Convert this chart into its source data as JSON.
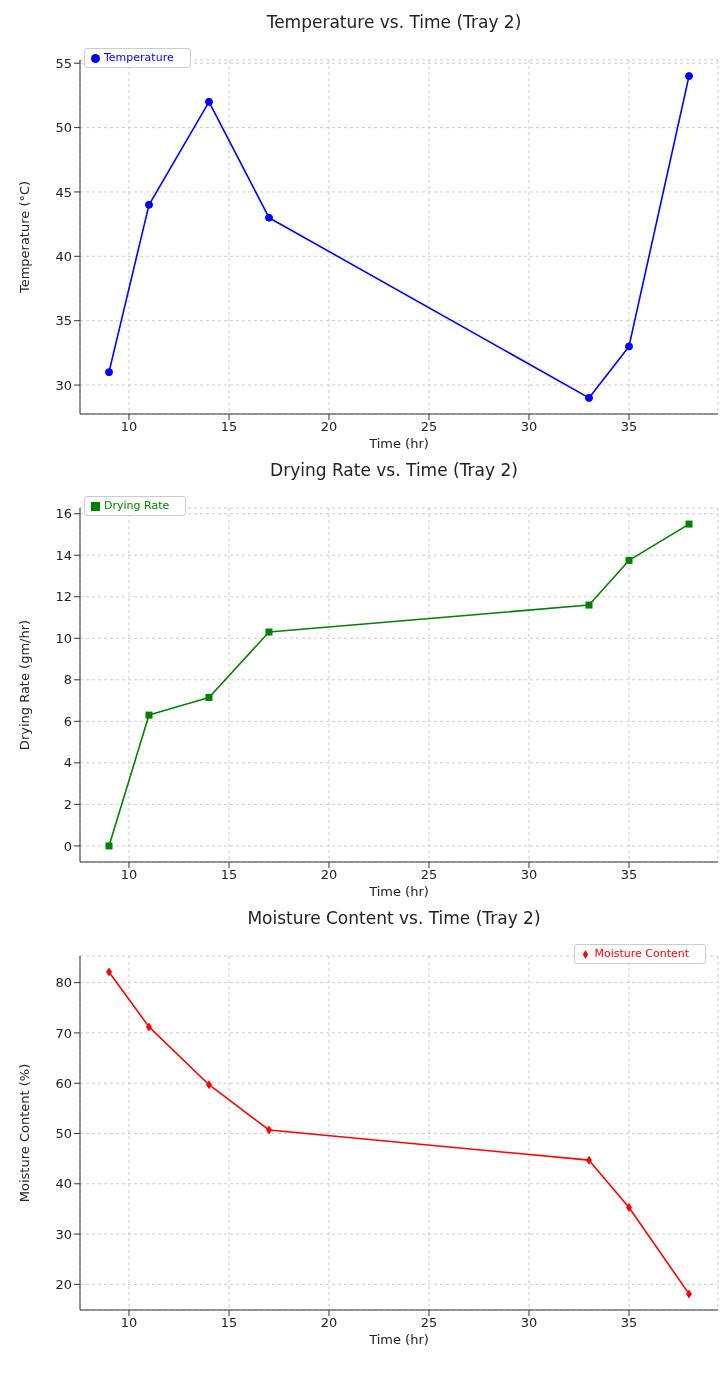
{
  "chart_data": [
    {
      "type": "line",
      "title": "Temperature vs. Time (Tray 2)",
      "xlabel": "Time (hr)",
      "ylabel": "Temperature (°C)",
      "x": [
        9,
        11,
        14,
        17,
        33,
        35,
        38
      ],
      "series": [
        {
          "name": "Temperature",
          "color": "#0000ff",
          "values": [
            31,
            44,
            52,
            43,
            29,
            33,
            54
          ]
        }
      ],
      "xlim": [
        7.55,
        39.45
      ],
      "xticks": [
        10,
        15,
        20,
        25,
        30,
        35
      ],
      "ylim": [
        27.75,
        55.25
      ],
      "yticks": [
        30,
        35,
        40,
        45,
        50,
        55
      ],
      "grid": true,
      "legend": "top left",
      "marker": "circle",
      "line_style": "solid"
    },
    {
      "type": "line",
      "title": "Drying Rate vs. Time (Tray 2)",
      "xlabel": "Time (hr)",
      "ylabel": "Drying Rate (gm/hr)",
      "x": [
        9,
        11,
        14,
        17,
        33,
        35,
        38
      ],
      "series": [
        {
          "name": "Drying Rate",
          "color": "#008000",
          "values": [
            0,
            6.3,
            7.15,
            10.3,
            11.6,
            13.75,
            15.5
          ]
        }
      ],
      "xlim": [
        7.55,
        39.45
      ],
      "xticks": [
        10,
        15,
        20,
        25,
        30,
        35
      ],
      "ylim": [
        -0.775,
        16.275
      ],
      "yticks": [
        0,
        2,
        4,
        6,
        8,
        10,
        12,
        14,
        16
      ],
      "grid": true,
      "legend": "top left",
      "marker": "square",
      "line_style": "solid"
    },
    {
      "type": "line",
      "title": "Moisture Content vs. Time (Tray 2)",
      "xlabel": "Time (hr)",
      "ylabel": "Moisture Content (%)",
      "x": [
        9,
        11,
        14,
        17,
        33,
        35,
        38
      ],
      "series": [
        {
          "name": "Moisture Content",
          "color": "#ff0000",
          "values": [
            82.1,
            71.2,
            59.7,
            50.7,
            44.7,
            35.3,
            18.1
          ]
        }
      ],
      "xlim": [
        7.55,
        39.45
      ],
      "xticks": [
        10,
        15,
        20,
        25,
        30,
        35
      ],
      "ylim": [
        14.9,
        85.3
      ],
      "yticks": [
        20,
        30,
        40,
        50,
        60,
        70,
        80
      ],
      "grid": true,
      "legend": "top right",
      "marker": "diamond",
      "line_style": "solid"
    }
  ]
}
